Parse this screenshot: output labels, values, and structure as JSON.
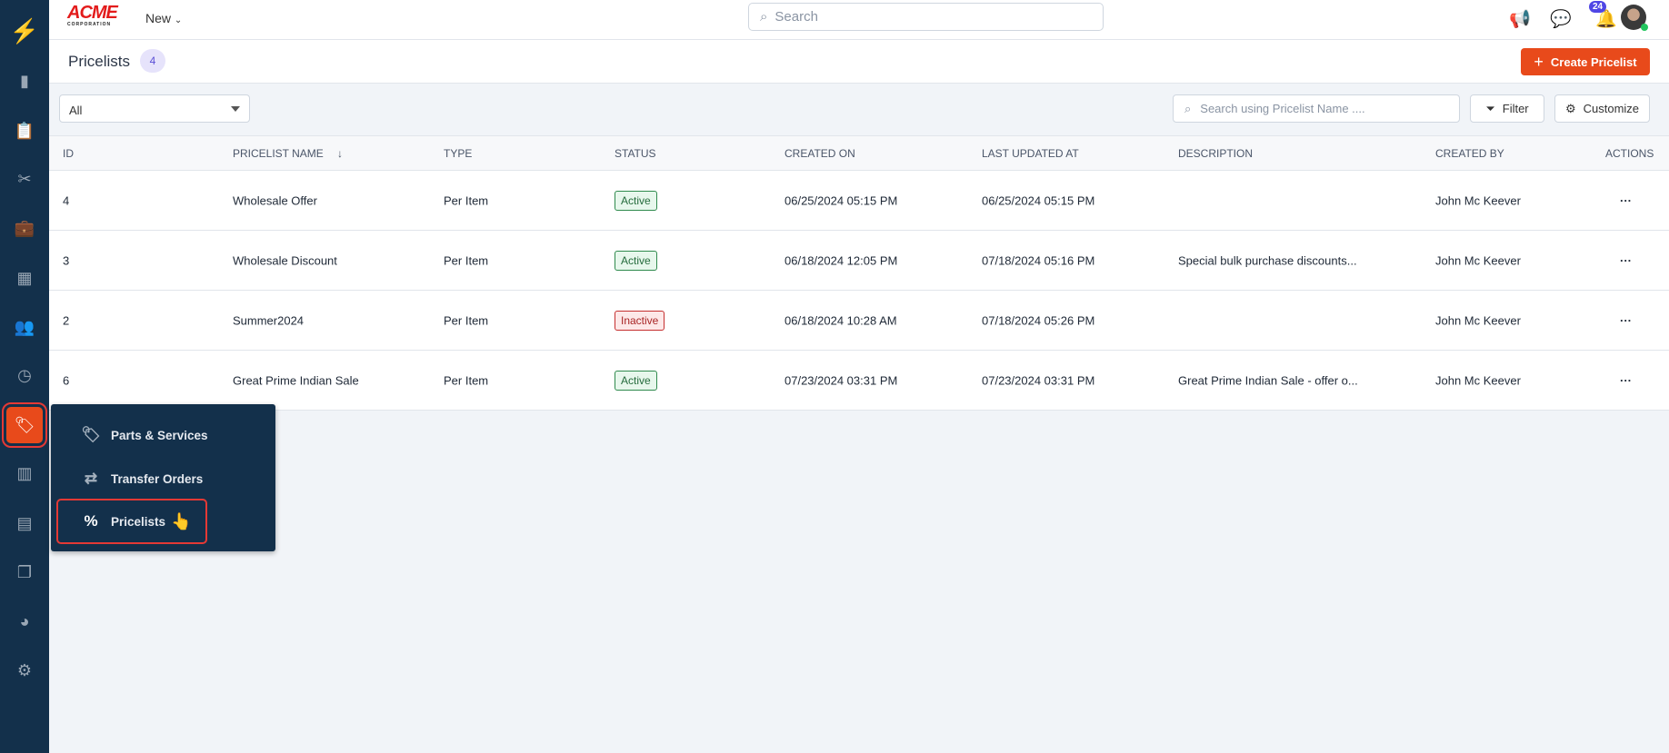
{
  "header": {
    "logo_text": "ACME",
    "logo_sub": "CORPORATION",
    "new_label": "New",
    "search_placeholder": "Search",
    "notification_count": "24"
  },
  "page": {
    "title": "Pricelists",
    "count": "4",
    "create_label": "Create Pricelist"
  },
  "toolbar": {
    "filter_select": "All",
    "search_placeholder": "Search using Pricelist Name ....",
    "filter_label": "Filter",
    "customize_label": "Customize"
  },
  "table": {
    "columns": [
      "ID",
      "PRICELIST NAME",
      "TYPE",
      "STATUS",
      "CREATED ON",
      "LAST UPDATED AT",
      "DESCRIPTION",
      "CREATED BY",
      "ACTIONS"
    ],
    "rows": [
      {
        "id": "4",
        "name": "Wholesale Offer",
        "type": "Per Item",
        "status": "Active",
        "created": "06/25/2024 05:15 PM",
        "updated": "06/25/2024 05:15 PM",
        "description": "",
        "created_by": "John Mc Keever"
      },
      {
        "id": "3",
        "name": "Wholesale Discount",
        "type": "Per Item",
        "status": "Active",
        "created": "06/18/2024 12:05 PM",
        "updated": "07/18/2024 05:16 PM",
        "description": "Special bulk purchase discounts...",
        "created_by": "John Mc Keever"
      },
      {
        "id": "2",
        "name": "Summer2024",
        "type": "Per Item",
        "status": "Inactive",
        "created": "06/18/2024 10:28 AM",
        "updated": "07/18/2024 05:26 PM",
        "description": "",
        "created_by": "John Mc Keever"
      },
      {
        "id": "6",
        "name": "Great Prime Indian Sale",
        "type": "Per Item",
        "status": "Active",
        "created": "07/23/2024 03:31 PM",
        "updated": "07/23/2024 03:31 PM",
        "description": "Great Prime Indian Sale - offer o...",
        "created_by": "John Mc Keever"
      }
    ]
  },
  "flyout": {
    "items": [
      {
        "label": "Parts & Services",
        "icon": "tag-icon"
      },
      {
        "label": "Transfer Orders",
        "icon": "transfer-icon"
      },
      {
        "label": "Pricelists",
        "icon": "percent-icon"
      }
    ]
  },
  "colors": {
    "sidebar": "#13304b",
    "accent": "#e84a1b",
    "active": "#256b3c",
    "inactive": "#a82525"
  }
}
